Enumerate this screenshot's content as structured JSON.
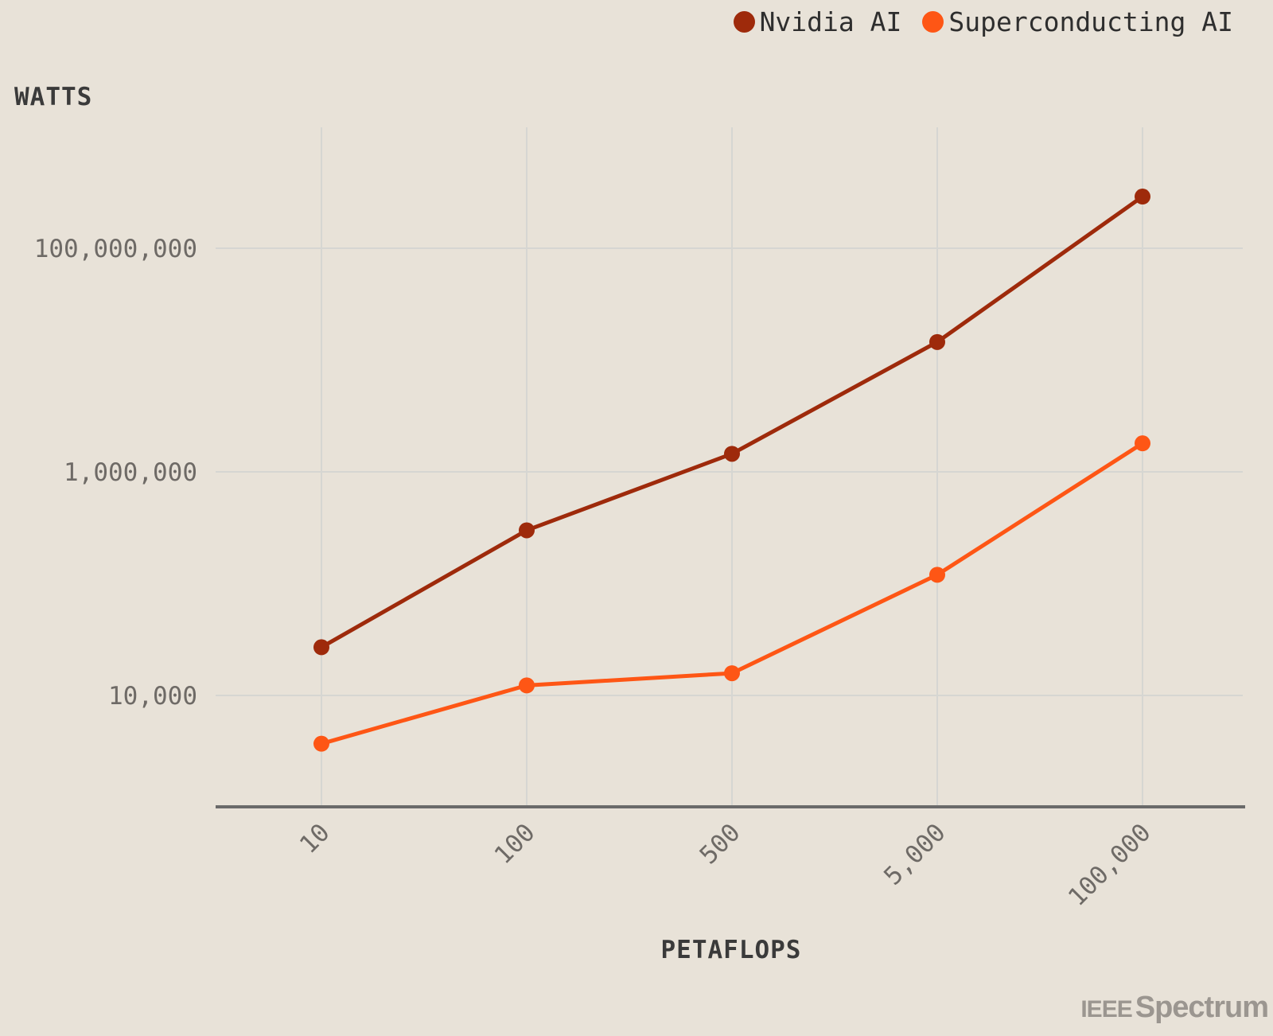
{
  "legend": {
    "items": [
      {
        "label": "Nvidia AI",
        "color": "#9e2a0b"
      },
      {
        "label": "Superconducting AI",
        "color": "#fe5615"
      }
    ]
  },
  "logo": {
    "ieee": "IEEE",
    "spectrum": "Spectrum"
  },
  "chart_data": {
    "type": "line",
    "title": "",
    "xlabel": "PETAFLOPS",
    "ylabel": "WATTS",
    "x_scale": "categorical",
    "y_scale": "log",
    "categories": [
      "10",
      "100",
      "500",
      "5,000",
      "100,000"
    ],
    "y_ticks": [
      10000,
      1000000,
      100000000
    ],
    "y_tick_labels": [
      "10,000",
      "1,000,000",
      "100,000,000"
    ],
    "ylim": [
      1000,
      1000000000
    ],
    "grid": true,
    "legend_position": "top-right",
    "series": [
      {
        "name": "Nvidia AI",
        "color": "#9e2a0b",
        "values": [
          27000,
          300000,
          1450000,
          14500000,
          290000000
        ]
      },
      {
        "name": "Superconducting AI",
        "color": "#fe5615",
        "values": [
          3700,
          12300,
          15800,
          120000,
          1800000
        ]
      }
    ]
  }
}
